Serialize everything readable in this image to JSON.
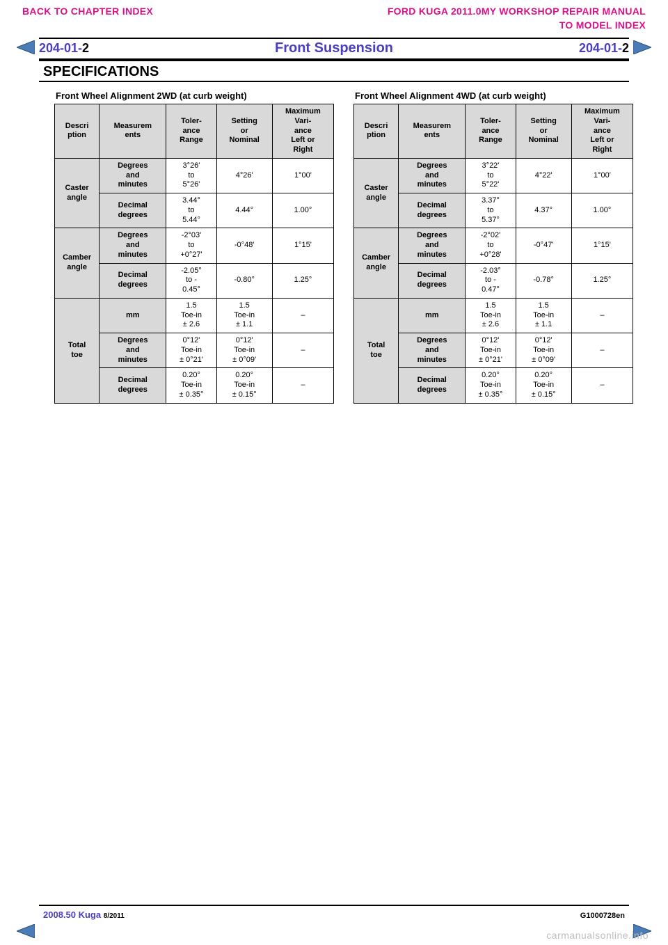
{
  "nav": {
    "back": "BACK TO CHAPTER INDEX",
    "manual": "FORD KUGA 2011.0MY WORKSHOP REPAIR MANUAL",
    "model": "TO MODEL INDEX"
  },
  "header": {
    "code_prefix": "204-01-",
    "code_suffix": "2",
    "title": "Front Suspension"
  },
  "spec_heading": "SPECIFICATIONS",
  "arrows": {
    "fill": "#4a7db8",
    "stroke": "#2a4d73"
  },
  "columns": [
    "Descri\nption",
    "Measurem\nents",
    "Toler-\nance\nRange",
    "Setting\nor\nNominal",
    "Maximum\nVari-\nance\nLeft or\nRight"
  ],
  "table_2wd": {
    "title": "Front Wheel Alignment 2WD (at curb weight)",
    "groups": [
      {
        "label": "Caster\nangle",
        "rows": [
          [
            "Degrees\nand\nminutes",
            "3°26'\nto\n5°26'",
            "4°26'",
            "1°00'"
          ],
          [
            "Decimal\ndegrees",
            "3.44°\nto\n5.44°",
            "4.44°",
            "1.00°"
          ]
        ]
      },
      {
        "label": "Camber\nangle",
        "rows": [
          [
            "Degrees\nand\nminutes",
            "-2°03'\nto\n+0°27'",
            "-0°48'",
            "1°15'"
          ],
          [
            "Decimal\ndegrees",
            "-2.05°\nto -\n0.45°",
            "-0.80°",
            "1.25°"
          ]
        ]
      },
      {
        "label": "Total\ntoe",
        "rows": [
          [
            "mm",
            "1.5\nToe-in\n± 2.6",
            "1.5\nToe-in\n± 1.1",
            "–"
          ],
          [
            "Degrees\nand\nminutes",
            "0°12'\nToe-in\n± 0°21'",
            "0°12'\nToe-in\n± 0°09'",
            "–"
          ],
          [
            "Decimal\ndegrees",
            "0.20°\nToe-in\n± 0.35°",
            "0.20°\nToe-in\n± 0.15°",
            "–"
          ]
        ]
      }
    ]
  },
  "table_4wd": {
    "title": "Front Wheel Alignment 4WD (at curb weight)",
    "groups": [
      {
        "label": "Caster\nangle",
        "rows": [
          [
            "Degrees\nand\nminutes",
            "3°22'\nto\n5°22'",
            "4°22'",
            "1°00'"
          ],
          [
            "Decimal\ndegrees",
            "3.37°\nto\n5.37°",
            "4.37°",
            "1.00°"
          ]
        ]
      },
      {
        "label": "Camber\nangle",
        "rows": [
          [
            "Degrees\nand\nminutes",
            "-2°02'\nto\n+0°28'",
            "-0°47'",
            "1°15'"
          ],
          [
            "Decimal\ndegrees",
            "-2.03°\nto -\n0.47°",
            "-0.78°",
            "1.25°"
          ]
        ]
      },
      {
        "label": "Total\ntoe",
        "rows": [
          [
            "mm",
            "1.5\nToe-in\n± 2.6",
            "1.5\nToe-in\n± 1.1",
            "–"
          ],
          [
            "Degrees\nand\nminutes",
            "0°12'\nToe-in\n± 0°21'",
            "0°12'\nToe-in\n± 0°09'",
            "–"
          ],
          [
            "Decimal\ndegrees",
            "0.20°\nToe-in\n± 0.35°",
            "0.20°\nToe-in\n± 0.15°",
            "–"
          ]
        ]
      }
    ]
  },
  "footer": {
    "left_main": "2008.50 Kuga",
    "left_small": "8/2011",
    "right": "G1000728en"
  },
  "watermark": "carmanualsonline.info"
}
